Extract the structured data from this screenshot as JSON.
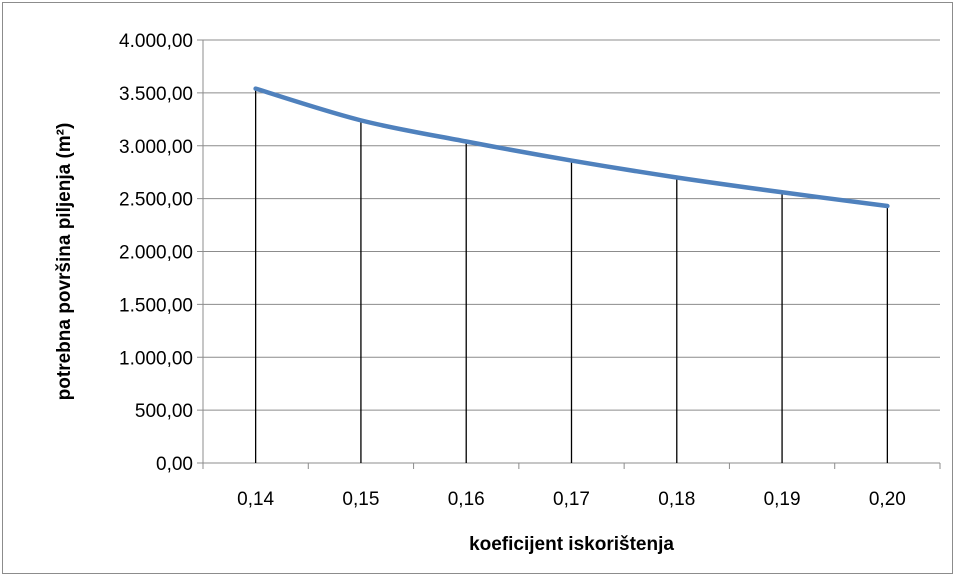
{
  "chart_data": {
    "type": "line",
    "title": "",
    "xlabel": "koeficijent iskorištenja",
    "ylabel": "potrebna površina piljenja (m²)",
    "x": [
      "0,14",
      "0,15",
      "0,16",
      "0,17",
      "0,18",
      "0,19",
      "0,20"
    ],
    "x_values": [
      0.14,
      0.15,
      0.16,
      0.17,
      0.18,
      0.19,
      0.2
    ],
    "series": [
      {
        "values": [
          3540,
          3240,
          3040,
          2860,
          2700,
          2560,
          2430
        ],
        "color": "#4f81bd"
      }
    ],
    "ylim": [
      0,
      4000
    ],
    "yticks": [
      0,
      500,
      1000,
      1500,
      2000,
      2500,
      3000,
      3500,
      4000
    ],
    "ytick_labels": [
      "0,00",
      "500,00",
      "1.000,00",
      "1.500,00",
      "2.000,00",
      "2.500,00",
      "3.000,00",
      "3.500,00",
      "4.000,00"
    ],
    "drop_lines": true,
    "grid": "horizontal",
    "legend": "none",
    "colors": {
      "line": "#4f81bd",
      "grid": "#8c8c8c",
      "drop_line": "#000000"
    }
  }
}
